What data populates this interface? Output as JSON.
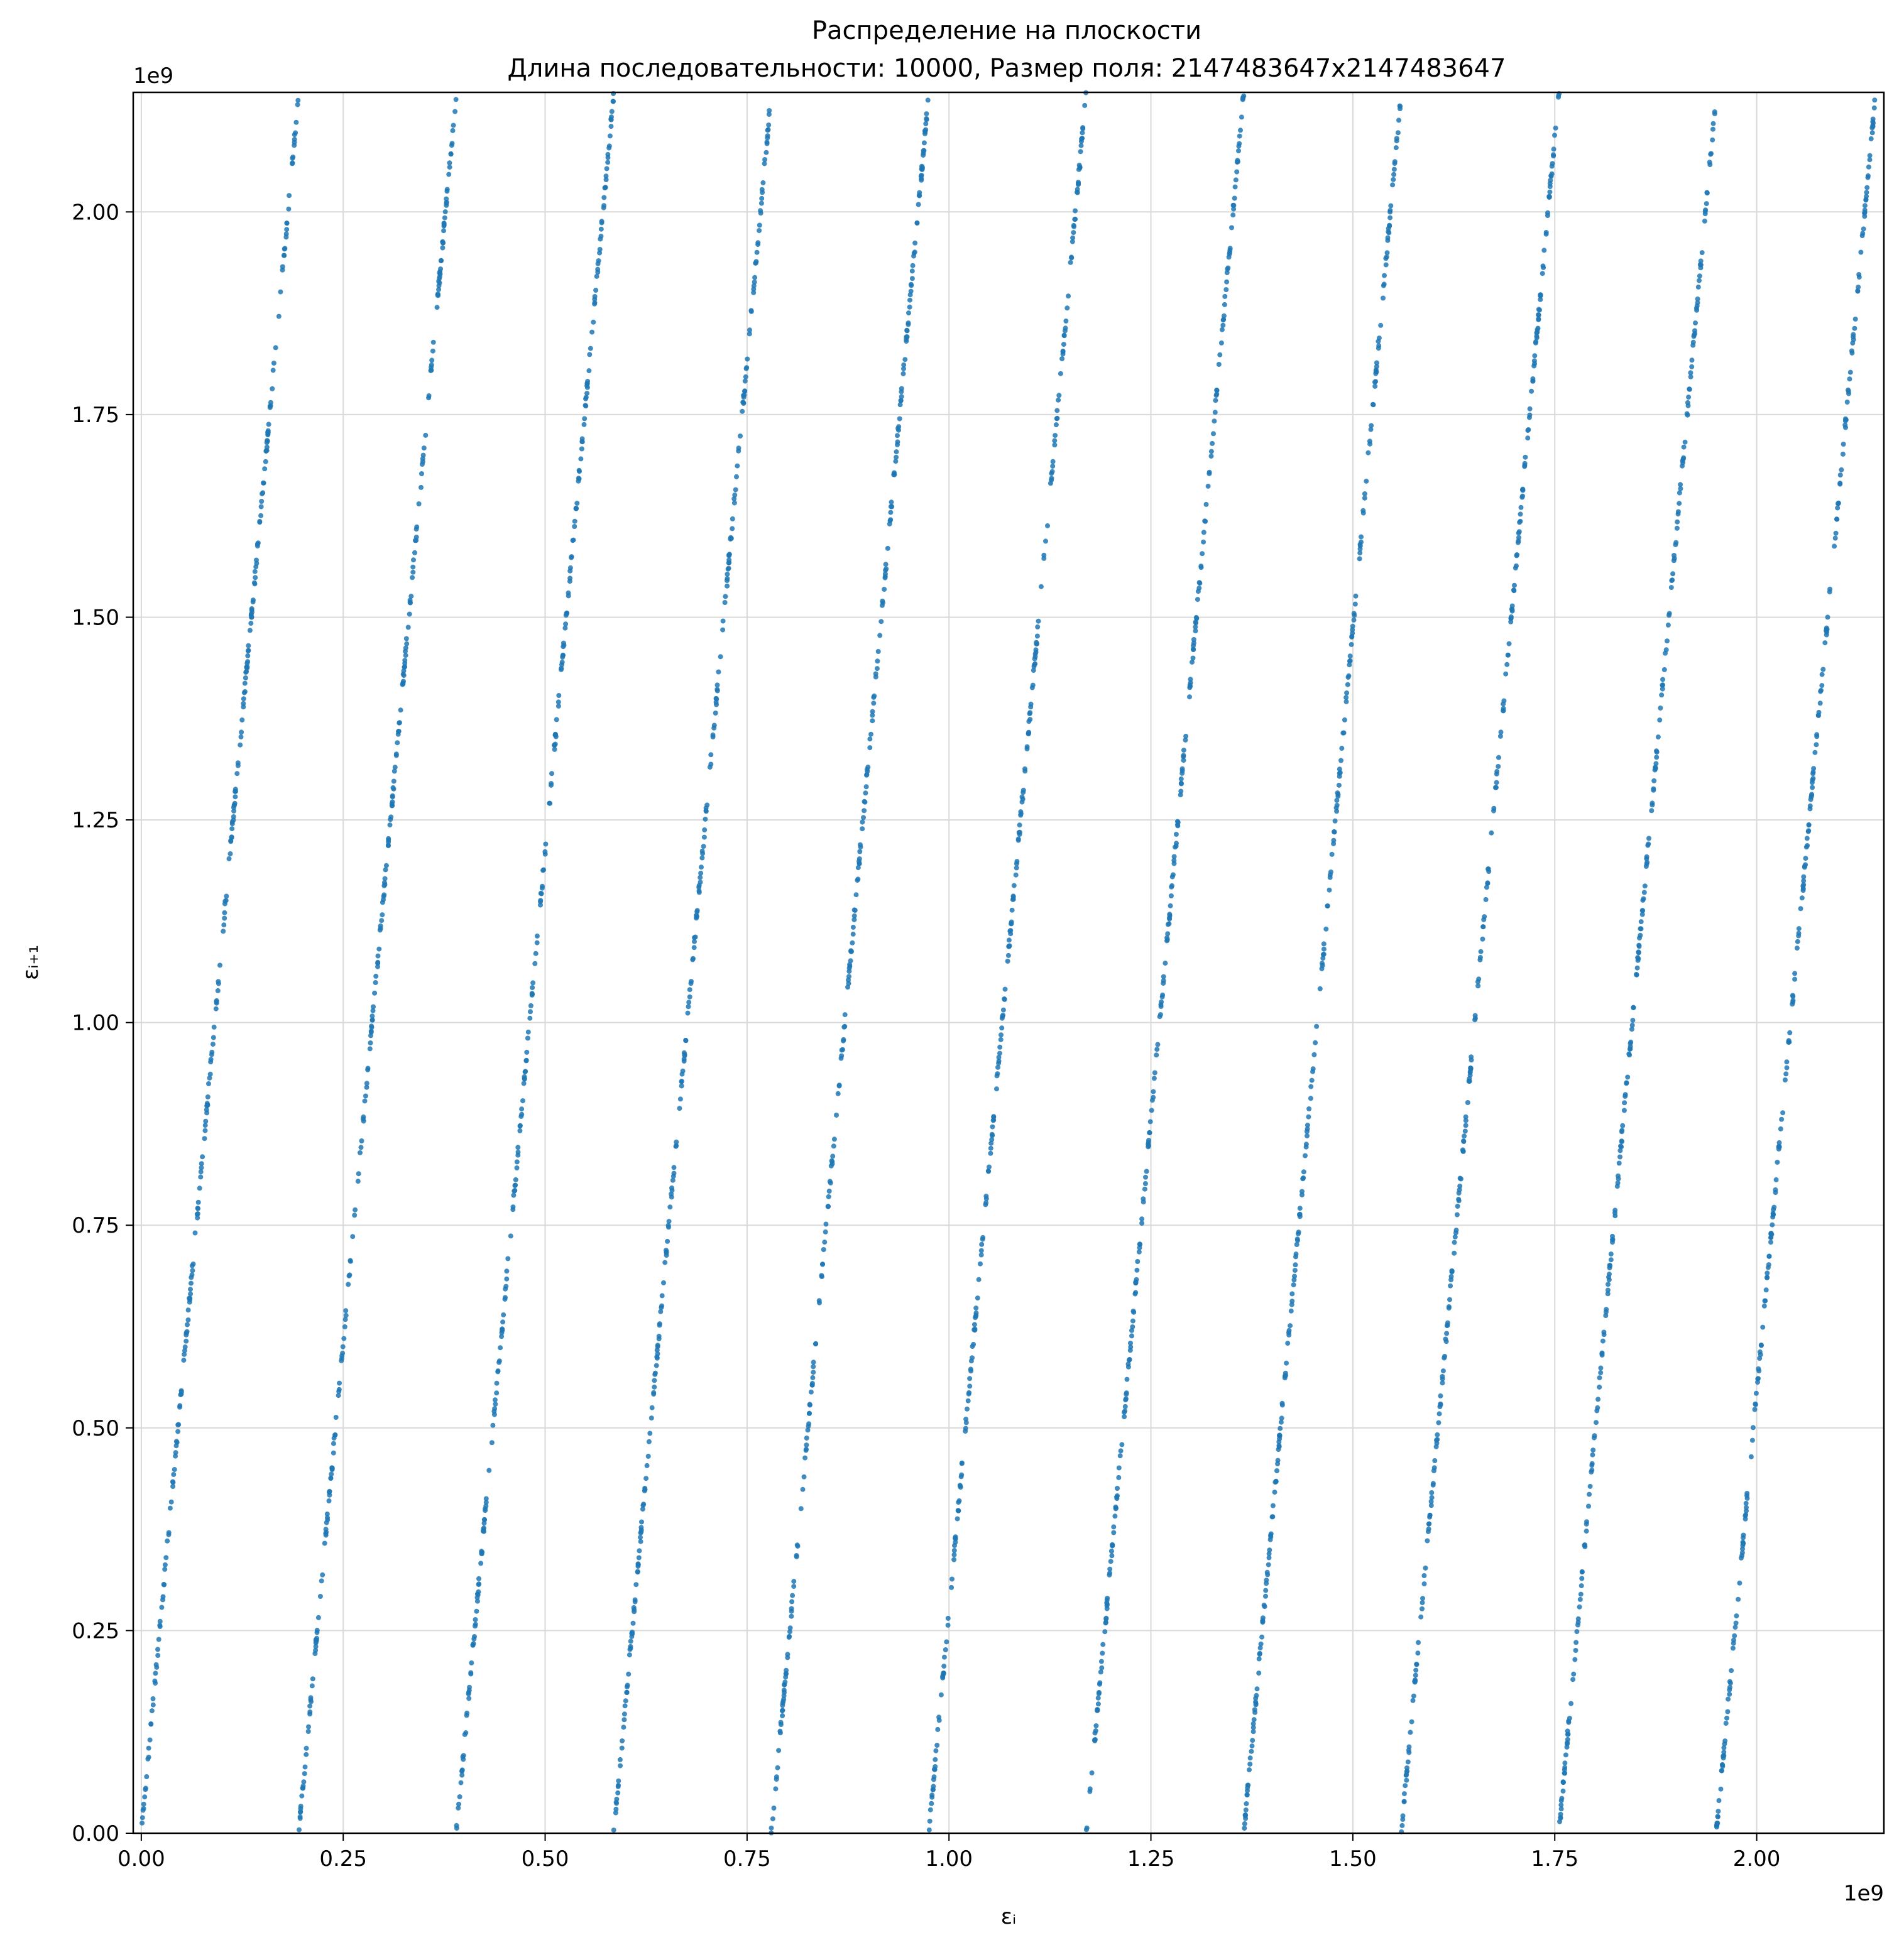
{
  "chart_data": {
    "type": "scatter",
    "title": "Распределение на плоскости",
    "subtitle": "Длина последовательности: 10000, Размер поля: 2147483647x2147483647",
    "xlabel": "εᵢ",
    "ylabel": "εᵢ₊₁",
    "x_offset_label": "1e9",
    "y_offset_label": "1e9",
    "xlim": [
      -10000000,
      2157483647
    ],
    "ylim": [
      0,
      2147483647
    ],
    "x_ticks": [
      0,
      0.25,
      0.5,
      0.75,
      1.0,
      1.25,
      1.5,
      1.75,
      2.0
    ],
    "x_tick_labels": [
      "0.00",
      "0.25",
      "0.50",
      "0.75",
      "1.00",
      "1.25",
      "1.50",
      "1.75",
      "2.00"
    ],
    "y_ticks": [
      0,
      0.25,
      0.5,
      0.75,
      1.0,
      1.25,
      1.5,
      1.75,
      2.0
    ],
    "y_tick_labels": [
      "0.00",
      "0.25",
      "0.50",
      "0.75",
      "1.00",
      "1.25",
      "1.50",
      "1.75",
      "2.00"
    ],
    "grid": true,
    "point_color": "#1f77b4",
    "bands": [
      {
        "x_start": 0,
        "x_end": 195000000
      },
      {
        "x_start": 195000000,
        "x_end": 390000000
      },
      {
        "x_start": 390000000,
        "x_end": 585000000
      },
      {
        "x_start": 585000000,
        "x_end": 780000000
      },
      {
        "x_start": 780000000,
        "x_end": 975000000
      },
      {
        "x_start": 975000000,
        "x_end": 1170000000
      },
      {
        "x_start": 1170000000,
        "x_end": 1365000000
      },
      {
        "x_start": 1365000000,
        "x_end": 1560000000
      },
      {
        "x_start": 1560000000,
        "x_end": 1755000000
      },
      {
        "x_start": 1755000000,
        "x_end": 1950000000
      },
      {
        "x_start": 1950000000,
        "x_end": 2147483647
      }
    ]
  }
}
